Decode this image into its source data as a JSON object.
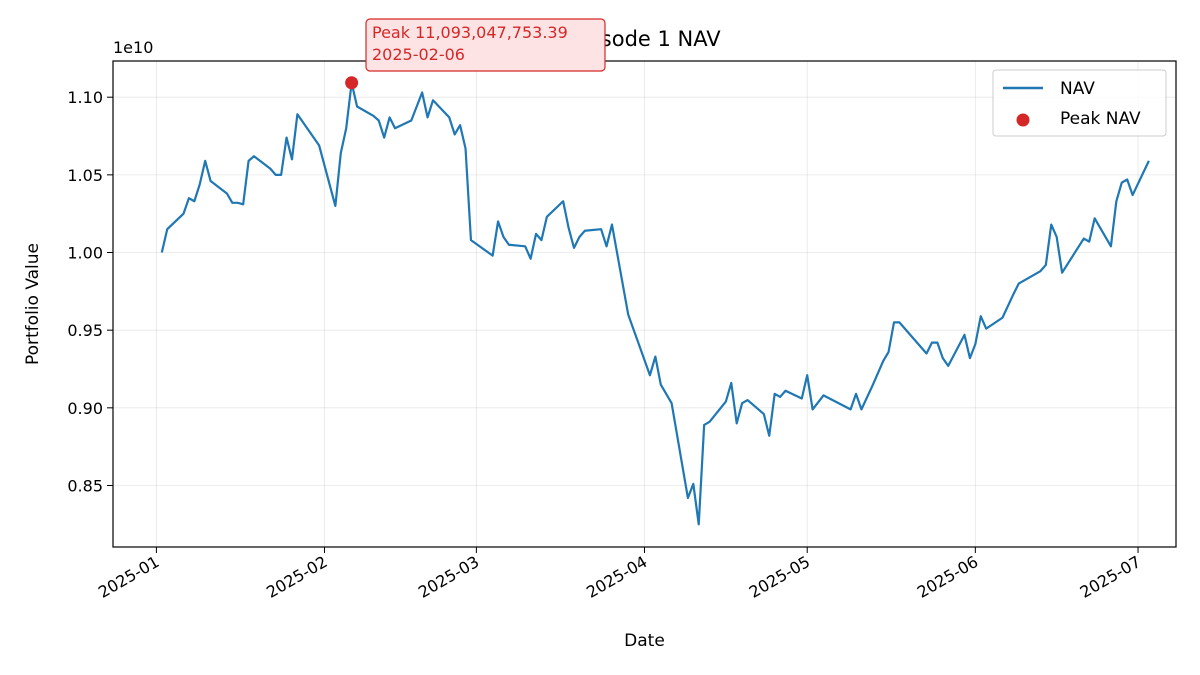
{
  "chart_data": {
    "type": "line",
    "title": "Episode 1 NAV",
    "xlabel": "Date",
    "ylabel": "Portfolio Value",
    "y_multiplier_label": "1e10",
    "x_ticks": [
      "2025-01",
      "2025-02",
      "2025-03",
      "2025-04",
      "2025-05",
      "2025-06",
      "2025-07"
    ],
    "y_ticks": [
      "0.85",
      "0.90",
      "0.95",
      "1.00",
      "1.05",
      "1.10"
    ],
    "xlim": [
      "2024-12-24",
      "2025-07-08"
    ],
    "ylim": [
      0.8104,
      1.1233
    ],
    "grid": true,
    "legend_position": "top-right",
    "colors": {
      "nav": "#1f77b4",
      "peak": "#d62728",
      "annotation_bg": "#fde3e3",
      "annotation_border": "#d62728"
    },
    "series": [
      {
        "name": "NAV",
        "points": [
          [
            "2025-01-02",
            1.0
          ],
          [
            "2025-01-03",
            1.015
          ],
          [
            "2025-01-06",
            1.025
          ],
          [
            "2025-01-07",
            1.035
          ],
          [
            "2025-01-08",
            1.033
          ],
          [
            "2025-01-09",
            1.044
          ],
          [
            "2025-01-10",
            1.059
          ],
          [
            "2025-01-11",
            1.046
          ],
          [
            "2025-01-14",
            1.038
          ],
          [
            "2025-01-15",
            1.032
          ],
          [
            "2025-01-16",
            1.032
          ],
          [
            "2025-01-17",
            1.031
          ],
          [
            "2025-01-18",
            1.059
          ],
          [
            "2025-01-19",
            1.062
          ],
          [
            "2025-01-22",
            1.054
          ],
          [
            "2025-01-23",
            1.05
          ],
          [
            "2025-01-24",
            1.05
          ],
          [
            "2025-01-25",
            1.074
          ],
          [
            "2025-01-26",
            1.06
          ],
          [
            "2025-01-27",
            1.089
          ],
          [
            "2025-01-31",
            1.069
          ],
          [
            "2025-02-03",
            1.03
          ],
          [
            "2025-02-04",
            1.064
          ],
          [
            "2025-02-05",
            1.08
          ],
          [
            "2025-02-06",
            1.1093
          ],
          [
            "2025-02-07",
            1.094
          ],
          [
            "2025-02-10",
            1.088
          ],
          [
            "2025-02-11",
            1.085
          ],
          [
            "2025-02-12",
            1.074
          ],
          [
            "2025-02-13",
            1.087
          ],
          [
            "2025-02-14",
            1.08
          ],
          [
            "2025-02-17",
            1.085
          ],
          [
            "2025-02-18",
            1.094
          ],
          [
            "2025-02-19",
            1.103
          ],
          [
            "2025-02-20",
            1.087
          ],
          [
            "2025-02-21",
            1.098
          ],
          [
            "2025-02-24",
            1.087
          ],
          [
            "2025-02-25",
            1.076
          ],
          [
            "2025-02-26",
            1.082
          ],
          [
            "2025-02-27",
            1.067
          ],
          [
            "2025-02-28",
            1.008
          ],
          [
            "2025-03-04",
            0.998
          ],
          [
            "2025-03-05",
            1.02
          ],
          [
            "2025-03-06",
            1.01
          ],
          [
            "2025-03-07",
            1.005
          ],
          [
            "2025-03-10",
            1.004
          ],
          [
            "2025-03-11",
            0.996
          ],
          [
            "2025-03-12",
            1.012
          ],
          [
            "2025-03-13",
            1.008
          ],
          [
            "2025-03-14",
            1.023
          ],
          [
            "2025-03-17",
            1.033
          ],
          [
            "2025-03-18",
            1.016
          ],
          [
            "2025-03-19",
            1.003
          ],
          [
            "2025-03-20",
            1.01
          ],
          [
            "2025-03-21",
            1.014
          ],
          [
            "2025-03-24",
            1.015
          ],
          [
            "2025-03-25",
            1.004
          ],
          [
            "2025-03-26",
            1.018
          ],
          [
            "2025-03-29",
            0.96
          ],
          [
            "2025-04-02",
            0.921
          ],
          [
            "2025-04-03",
            0.933
          ],
          [
            "2025-04-04",
            0.915
          ],
          [
            "2025-04-06",
            0.903
          ],
          [
            "2025-04-09",
            0.842
          ],
          [
            "2025-04-10",
            0.851
          ],
          [
            "2025-04-11",
            0.825
          ],
          [
            "2025-04-12",
            0.889
          ],
          [
            "2025-04-13",
            0.891
          ],
          [
            "2025-04-16",
            0.904
          ],
          [
            "2025-04-17",
            0.916
          ],
          [
            "2025-04-18",
            0.89
          ],
          [
            "2025-04-19",
            0.903
          ],
          [
            "2025-04-20",
            0.905
          ],
          [
            "2025-04-23",
            0.896
          ],
          [
            "2025-04-24",
            0.882
          ],
          [
            "2025-04-25",
            0.909
          ],
          [
            "2025-04-26",
            0.907
          ],
          [
            "2025-04-27",
            0.911
          ],
          [
            "2025-04-30",
            0.906
          ],
          [
            "2025-05-01",
            0.921
          ],
          [
            "2025-05-02",
            0.899
          ],
          [
            "2025-05-04",
            0.908
          ],
          [
            "2025-05-09",
            0.899
          ],
          [
            "2025-05-10",
            0.909
          ],
          [
            "2025-05-11",
            0.899
          ],
          [
            "2025-05-13",
            0.914
          ],
          [
            "2025-05-15",
            0.93
          ],
          [
            "2025-05-16",
            0.936
          ],
          [
            "2025-05-17",
            0.955
          ],
          [
            "2025-05-18",
            0.955
          ],
          [
            "2025-05-23",
            0.935
          ],
          [
            "2025-05-24",
            0.942
          ],
          [
            "2025-05-25",
            0.942
          ],
          [
            "2025-05-26",
            0.932
          ],
          [
            "2025-05-27",
            0.927
          ],
          [
            "2025-05-30",
            0.947
          ],
          [
            "2025-05-31",
            0.932
          ],
          [
            "2025-06-01",
            0.941
          ],
          [
            "2025-06-02",
            0.959
          ],
          [
            "2025-06-03",
            0.951
          ],
          [
            "2025-06-06",
            0.958
          ],
          [
            "2025-06-08",
            0.973
          ],
          [
            "2025-06-09",
            0.98
          ],
          [
            "2025-06-13",
            0.988
          ],
          [
            "2025-06-14",
            0.992
          ],
          [
            "2025-06-15",
            1.018
          ],
          [
            "2025-06-16",
            1.01
          ],
          [
            "2025-06-17",
            0.987
          ],
          [
            "2025-06-21",
            1.009
          ],
          [
            "2025-06-22",
            1.007
          ],
          [
            "2025-06-23",
            1.022
          ],
          [
            "2025-06-26",
            1.004
          ],
          [
            "2025-06-27",
            1.033
          ],
          [
            "2025-06-28",
            1.045
          ],
          [
            "2025-06-29",
            1.047
          ],
          [
            "2025-06-30",
            1.037
          ],
          [
            "2025-07-03",
            1.059
          ]
        ]
      },
      {
        "name": "Peak NAV",
        "points": [
          [
            "2025-02-06",
            1.1093
          ]
        ]
      }
    ],
    "annotation": {
      "line1": "Peak 11,093,047,753.39",
      "line2": "2025-02-06",
      "target": [
        "2025-02-06",
        1.1093
      ]
    }
  }
}
